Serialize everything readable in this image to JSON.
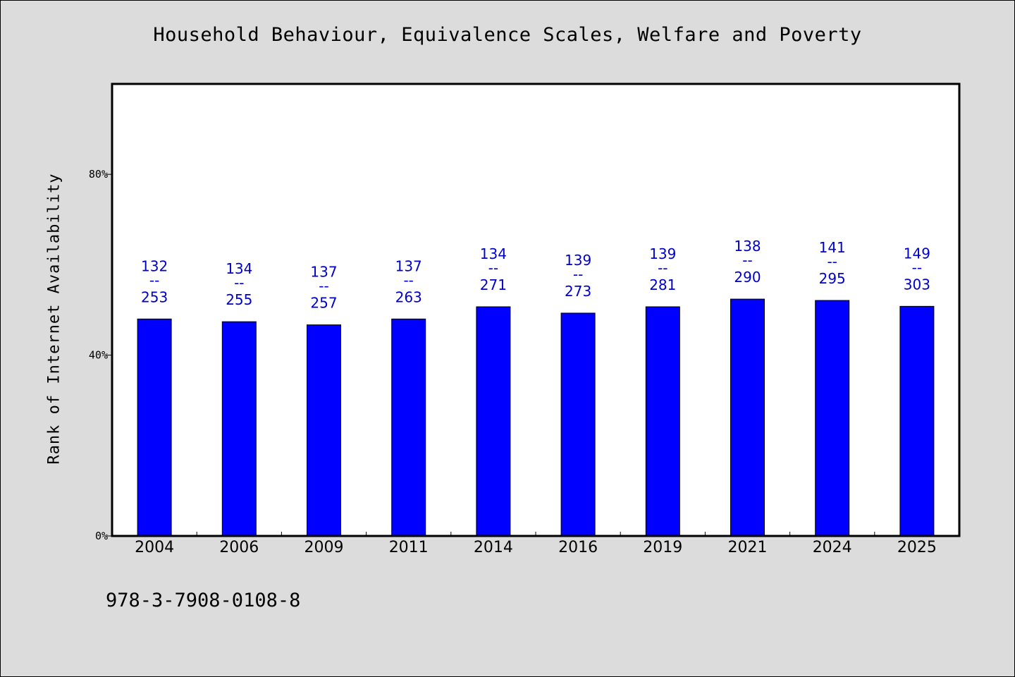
{
  "chart_data": {
    "type": "bar",
    "title": "Household Behaviour, Equivalence Scales, Welfare and Poverty",
    "ylabel": "Rank of Internet Availability",
    "xlabel": "",
    "categories": [
      "2004",
      "2006",
      "2009",
      "2011",
      "2014",
      "2016",
      "2019",
      "2021",
      "2024",
      "2025"
    ],
    "values": [
      48,
      47.4,
      46.7,
      48,
      50.7,
      49.3,
      50.7,
      52.4,
      52.1,
      50.8
    ],
    "ranks": [
      "132",
      "134",
      "137",
      "137",
      "134",
      "139",
      "139",
      "138",
      "141",
      "149"
    ],
    "totals": [
      "253",
      "255",
      "257",
      "263",
      "271",
      "273",
      "281",
      "290",
      "295",
      "303"
    ],
    "separator": "--",
    "ylim": [
      0,
      100
    ],
    "yticks": [
      0,
      40,
      80
    ],
    "ytick_labels": [
      "0%",
      "40%",
      "80%"
    ],
    "grid": false,
    "bar_color": "#0000ff",
    "label_color": "#0000cc"
  },
  "footnote": "978-3-7908-0108-8"
}
